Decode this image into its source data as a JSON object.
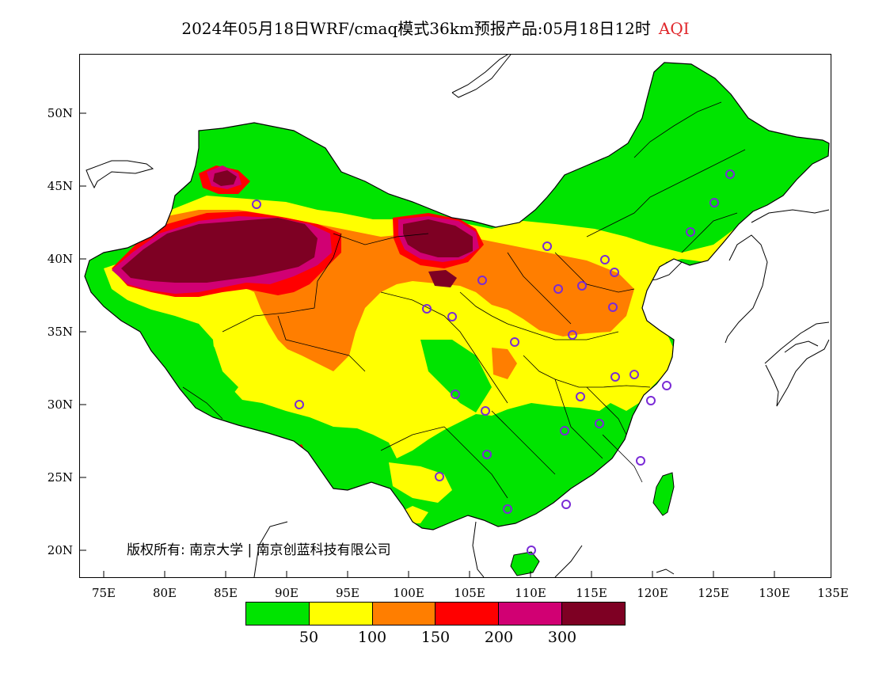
{
  "title": {
    "main": "2024年05月18日WRF/cmaq模式36km预报产品:05月18日12时",
    "variable": "AQI"
  },
  "axes": {
    "lat_labels": [
      "50N",
      "45N",
      "40N",
      "35N",
      "30N",
      "25N",
      "20N"
    ],
    "lon_labels": [
      "75E",
      "80E",
      "85E",
      "90E",
      "95E",
      "100E",
      "105E",
      "110E",
      "115E",
      "120E",
      "125E",
      "130E",
      "135E"
    ]
  },
  "copyright": "版权所有: 南京大学 | 南京创蓝科技有限公司",
  "legend": {
    "colors": [
      "#00e400",
      "#ffff00",
      "#ff7e00",
      "#ff0000",
      "#d10073",
      "#7e0023"
    ],
    "labels": [
      "50",
      "100",
      "150",
      "200",
      "300"
    ]
  }
}
